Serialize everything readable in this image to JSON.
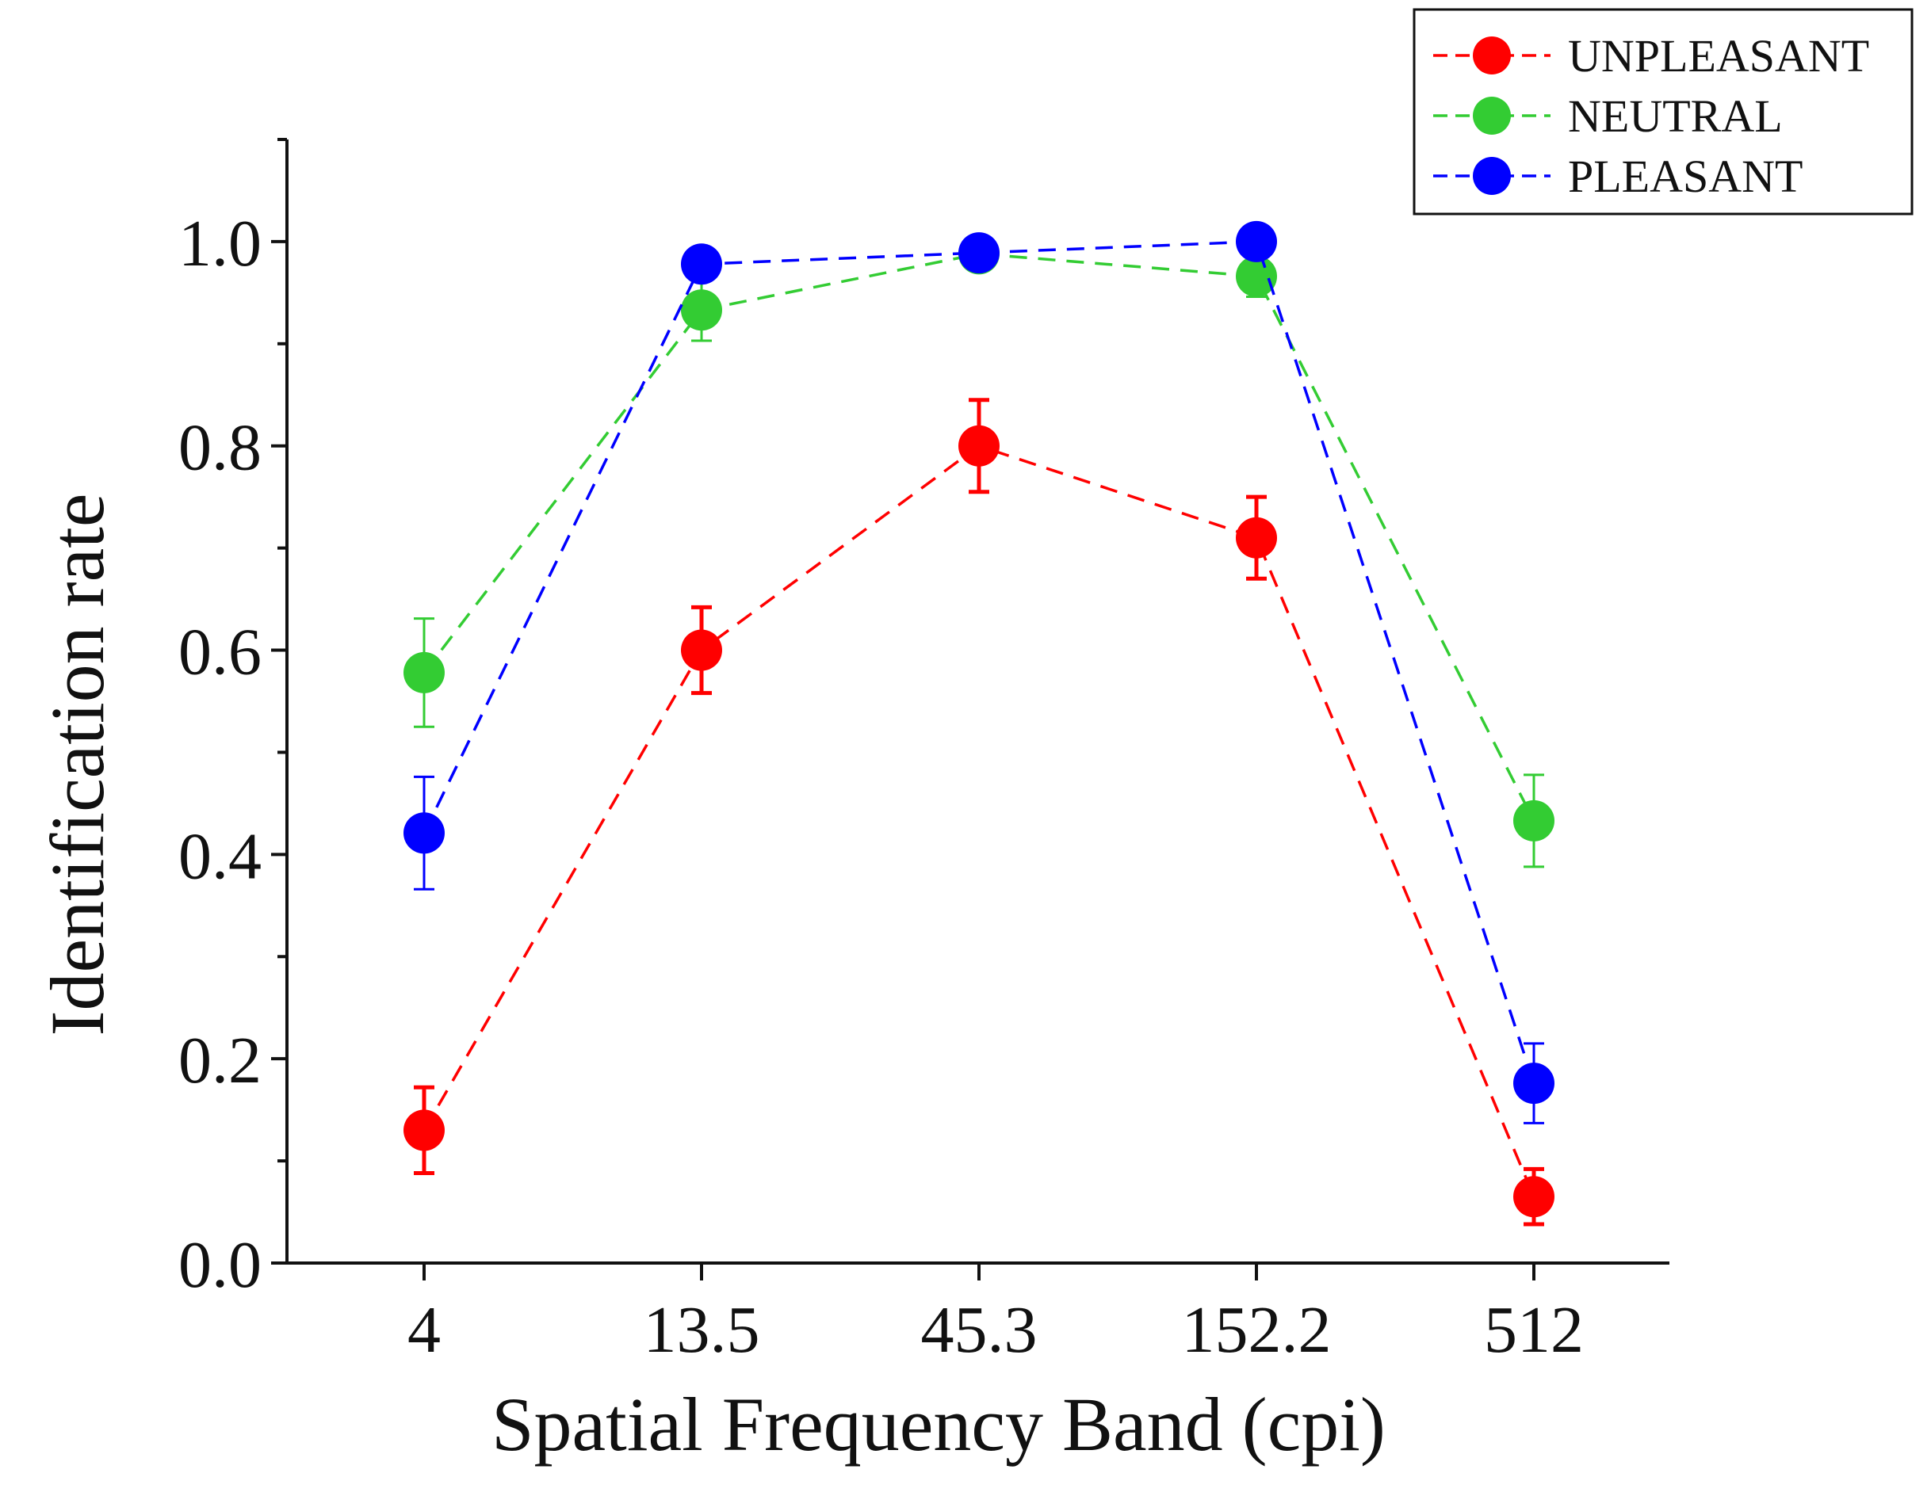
{
  "chart_data": {
    "type": "line",
    "title": "",
    "xlabel": "Spatial Frequency Band (cpi)",
    "ylabel": "Identification rate",
    "categories": [
      "4",
      "13.5",
      "45.3",
      "152.2",
      "512"
    ],
    "ylim": [
      0.0,
      1.1
    ],
    "y_ticks": [
      0.0,
      0.2,
      0.4,
      0.6,
      0.8,
      1.0
    ],
    "y_tick_labels": [
      "0.0",
      "0.2",
      "0.4",
      "0.6",
      "0.8",
      "1.0"
    ],
    "grid": false,
    "legend_position": "top-right",
    "series": [
      {
        "name": "UNPLEASANT",
        "color": "#ff0000",
        "values": [
          0.13,
          0.6,
          0.8,
          0.71,
          0.065
        ],
        "errors": [
          0.042,
          0.042,
          0.045,
          0.04,
          0.027
        ]
      },
      {
        "name": "NEUTRAL",
        "color": "#33cc33",
        "values": [
          0.578,
          0.933,
          0.988,
          0.966,
          0.433
        ],
        "errors": [
          0.053,
          0.03,
          0.008,
          0.02,
          0.045
        ]
      },
      {
        "name": "PLEASANT",
        "color": "#0000ff",
        "values": [
          0.421,
          0.978,
          0.989,
          1.0,
          0.176
        ],
        "errors": [
          0.055,
          0.015,
          0.01,
          0.004,
          0.039
        ]
      }
    ]
  }
}
